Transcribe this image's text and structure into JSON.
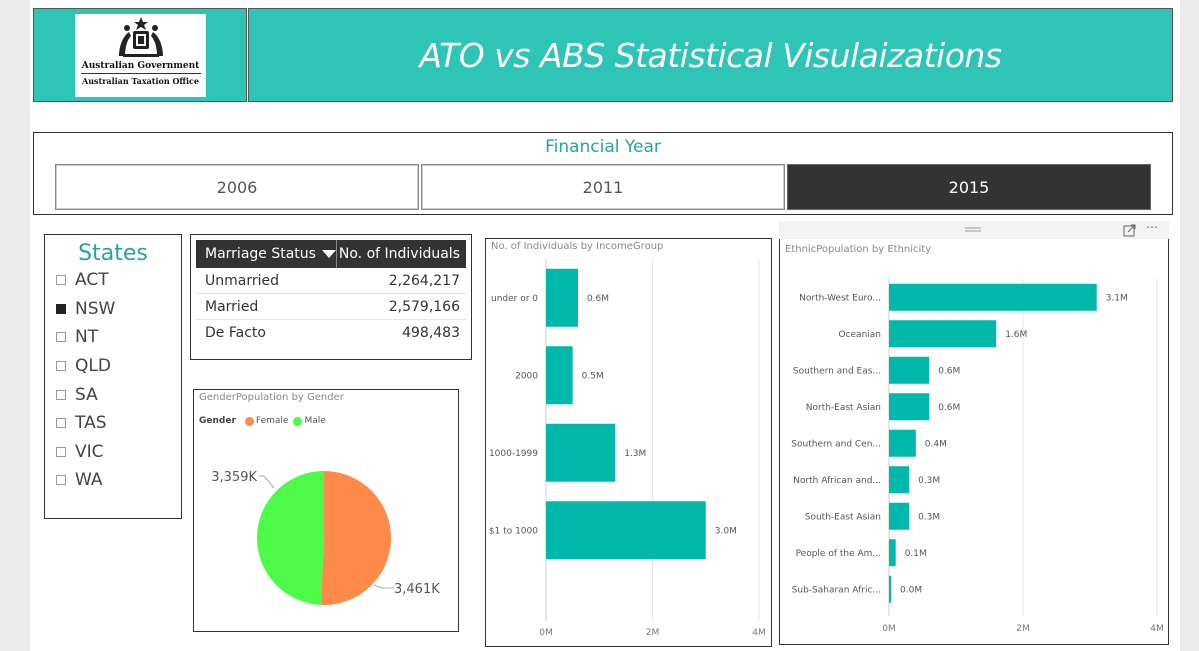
{
  "header": {
    "logo_line1": "Australian Government",
    "logo_line2": "Australian Taxation Office",
    "title": "ATO vs ABS Statistical Visulaizations"
  },
  "year_filter": {
    "label": "Financial Year",
    "options": [
      "2006",
      "2011",
      "2015"
    ],
    "selected": "2015"
  },
  "states": {
    "title": "States",
    "items": [
      {
        "label": "ACT",
        "checked": false
      },
      {
        "label": "NSW",
        "checked": true
      },
      {
        "label": "NT",
        "checked": false
      },
      {
        "label": "QLD",
        "checked": false
      },
      {
        "label": "SA",
        "checked": false
      },
      {
        "label": "TAS",
        "checked": false
      },
      {
        "label": "VIC",
        "checked": false
      },
      {
        "label": "WA",
        "checked": false
      }
    ]
  },
  "marriage_table": {
    "col1": "Marriage Status",
    "col2": "No. of Individuals",
    "rows": [
      {
        "status": "Unmarried",
        "count": "2,264,217"
      },
      {
        "status": "Married",
        "count": "2,579,166"
      },
      {
        "status": "De Facto",
        "count": "498,483"
      }
    ]
  },
  "colors": {
    "teal": "#2ec4b6",
    "bar": "#01b8aa",
    "female": "#fd8a48",
    "male": "#4cfa47",
    "selected": "#333333"
  },
  "chart_data": [
    {
      "type": "pie",
      "title": "GenderPopulation by Gender",
      "legend_title": "Gender",
      "labels": [
        "Female",
        "Male"
      ],
      "values": [
        3461,
        3359
      ],
      "value_labels": [
        "3,461K",
        "3,359K"
      ]
    },
    {
      "type": "bar",
      "orientation": "horizontal",
      "title": "No. of Individuals by IncomeGroup",
      "categories": [
        "under or 0",
        "2000",
        "1000-1999",
        "$1 to 1000"
      ],
      "values": [
        0.6,
        0.5,
        1.3,
        3.0
      ],
      "value_labels": [
        "0.6M",
        "0.5M",
        "1.3M",
        "3.0M"
      ],
      "xlim": [
        0,
        4
      ],
      "xticks": [
        "0M",
        "2M",
        "4M"
      ]
    },
    {
      "type": "bar",
      "orientation": "horizontal",
      "title": "EthnicPopulation by Ethnicity",
      "categories": [
        "North-West Euro...",
        "Oceanian",
        "Southern and Eas...",
        "North-East Asian",
        "Southern and Cen...",
        "North African and...",
        "South-East Asian",
        "People of the Am...",
        "Sub-Saharan Afric..."
      ],
      "values": [
        3.1,
        1.6,
        0.6,
        0.6,
        0.4,
        0.3,
        0.3,
        0.1,
        0.0
      ],
      "value_labels": [
        "3.1M",
        "1.6M",
        "0.6M",
        "0.6M",
        "0.4M",
        "0.3M",
        "0.3M",
        "0.1M",
        "0.0M"
      ],
      "xlim": [
        0,
        4
      ],
      "xticks": [
        "0M",
        "2M",
        "4M"
      ]
    }
  ]
}
